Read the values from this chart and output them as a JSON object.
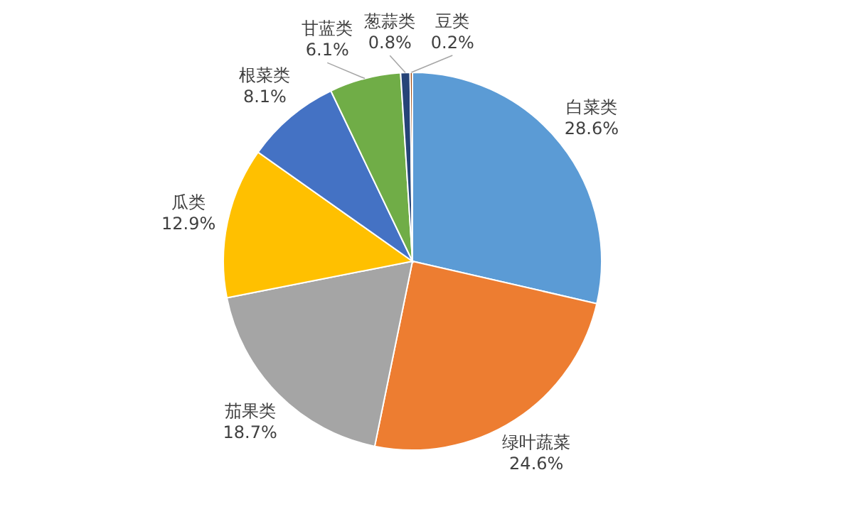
{
  "chart_data": {
    "type": "pie",
    "categories": [
      "白菜类",
      "绿叶蔬菜",
      "茄果类",
      "瓜类",
      "根菜类",
      "甘蓝类",
      "葱蒜类",
      "豆类"
    ],
    "values": [
      28.6,
      24.6,
      18.7,
      12.9,
      8.1,
      6.1,
      0.8,
      0.2
    ],
    "value_labels": [
      "28.6%",
      "24.6%",
      "18.7%",
      "12.9%",
      "8.1%",
      "6.1%",
      "0.8%",
      "0.2%"
    ],
    "colors": [
      "#5b9bd5",
      "#ed7d31",
      "#a5a5a5",
      "#ffc000",
      "#4472c4",
      "#70ad47",
      "#264478",
      "#9e480e"
    ],
    "legend": false
  }
}
